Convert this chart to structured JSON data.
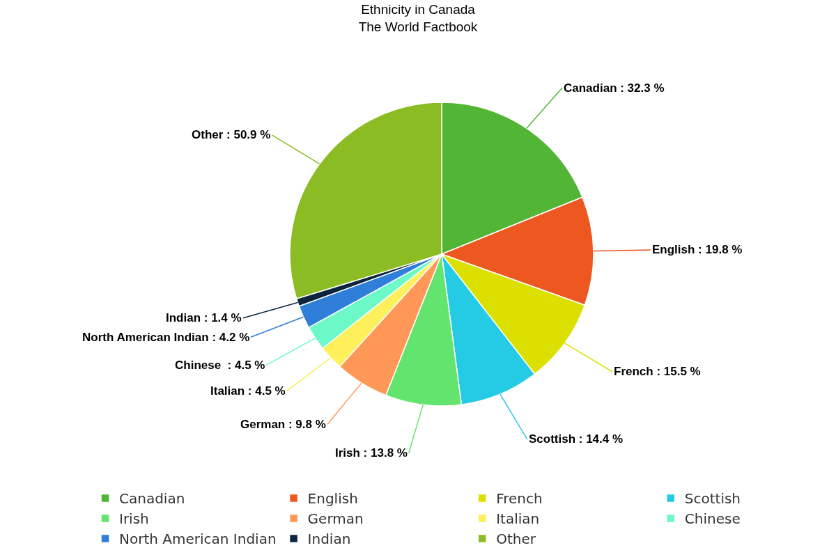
{
  "chart_data": {
    "type": "pie",
    "title": "Ethnicity in Canada",
    "subtitle": "The World Factbook",
    "categories": [
      "Canadian",
      "English",
      "French",
      "Scottish",
      "Irish",
      "German",
      "Italian",
      "Chinese",
      "North American Indian",
      "Indian",
      "Other"
    ],
    "values": [
      32.3,
      19.8,
      15.5,
      14.4,
      13.8,
      9.8,
      4.5,
      4.5,
      4.2,
      1.4,
      50.9
    ],
    "colors": [
      "#52b535",
      "#ec581f",
      "#dce000",
      "#25cbe4",
      "#62e46f",
      "#ff9757",
      "#fdf05a",
      "#6df9c7",
      "#2f7ed9",
      "#0c253d",
      "#8bbc23"
    ],
    "value_labels": [
      "Canadian : 32.3 %",
      "English : 19.8 %",
      "French : 15.5 %",
      "Scottish : 14.4 %",
      "Irish : 13.8 %",
      "German : 9.8 %",
      "Italian : 4.5 %",
      "Chinese  : 4.5 %",
      "North American Indian : 4.2 %",
      "Indian : 1.4 %",
      "Other : 50.9 %"
    ],
    "legend": "bottom"
  }
}
